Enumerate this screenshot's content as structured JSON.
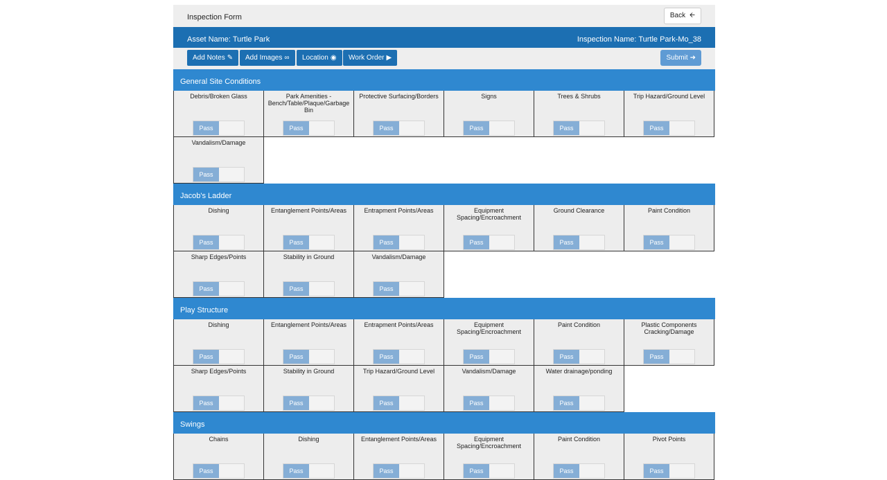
{
  "header": {
    "title": "Inspection Form",
    "back_label": "Back",
    "back_icon": "arrow-left-icon"
  },
  "asset": {
    "name_label": "Asset Name: Turtle Park",
    "inspection_label": "Inspection Name: Turtle Park-Mo_38"
  },
  "toolbar": {
    "add_notes": "Add Notes",
    "add_images": "Add Images",
    "location": "Location",
    "work_order": "Work Order",
    "submit": "Submit"
  },
  "colors": {
    "header_blue": "#1c6fb2",
    "section_blue": "#2f88d0",
    "pass_blue": "#85aed6"
  },
  "toggle_label": "Pass",
  "sections": [
    {
      "title": "General Site Conditions",
      "items": [
        "Debris/Broken Glass",
        "Park Amenities - Bench/Table/Plaque/Garbage Bin",
        "Protective Surfacing/Borders",
        "Signs",
        "Trees & Shrubs",
        "Trip Hazard/Ground Level",
        "Vandalism/Damage"
      ]
    },
    {
      "title": "Jacob's Ladder",
      "items": [
        "Dishing",
        "Entanglement Points/Areas",
        "Entrapment Points/Areas",
        "Equipment Spacing/Encroachment",
        "Ground Clearance",
        "Paint Condition",
        "Sharp Edges/Points",
        "Stability in Ground",
        "Vandalism/Damage"
      ]
    },
    {
      "title": "Play Structure",
      "items": [
        "Dishing",
        "Entanglement Points/Areas",
        "Entrapment Points/Areas",
        "Equipment Spacing/Encroachment",
        "Paint Condition",
        "Plastic Components Cracking/Damage",
        "Sharp Edges/Points",
        "Stability in Ground",
        "Trip Hazard/Ground Level",
        "Vandalism/Damage",
        "Water drainage/ponding"
      ]
    },
    {
      "title": "Swings",
      "items": [
        "Chains",
        "Dishing",
        "Entanglement Points/Areas",
        "Equipment Spacing/Encroachment",
        "Paint Condition",
        "Pivot Points"
      ]
    }
  ]
}
